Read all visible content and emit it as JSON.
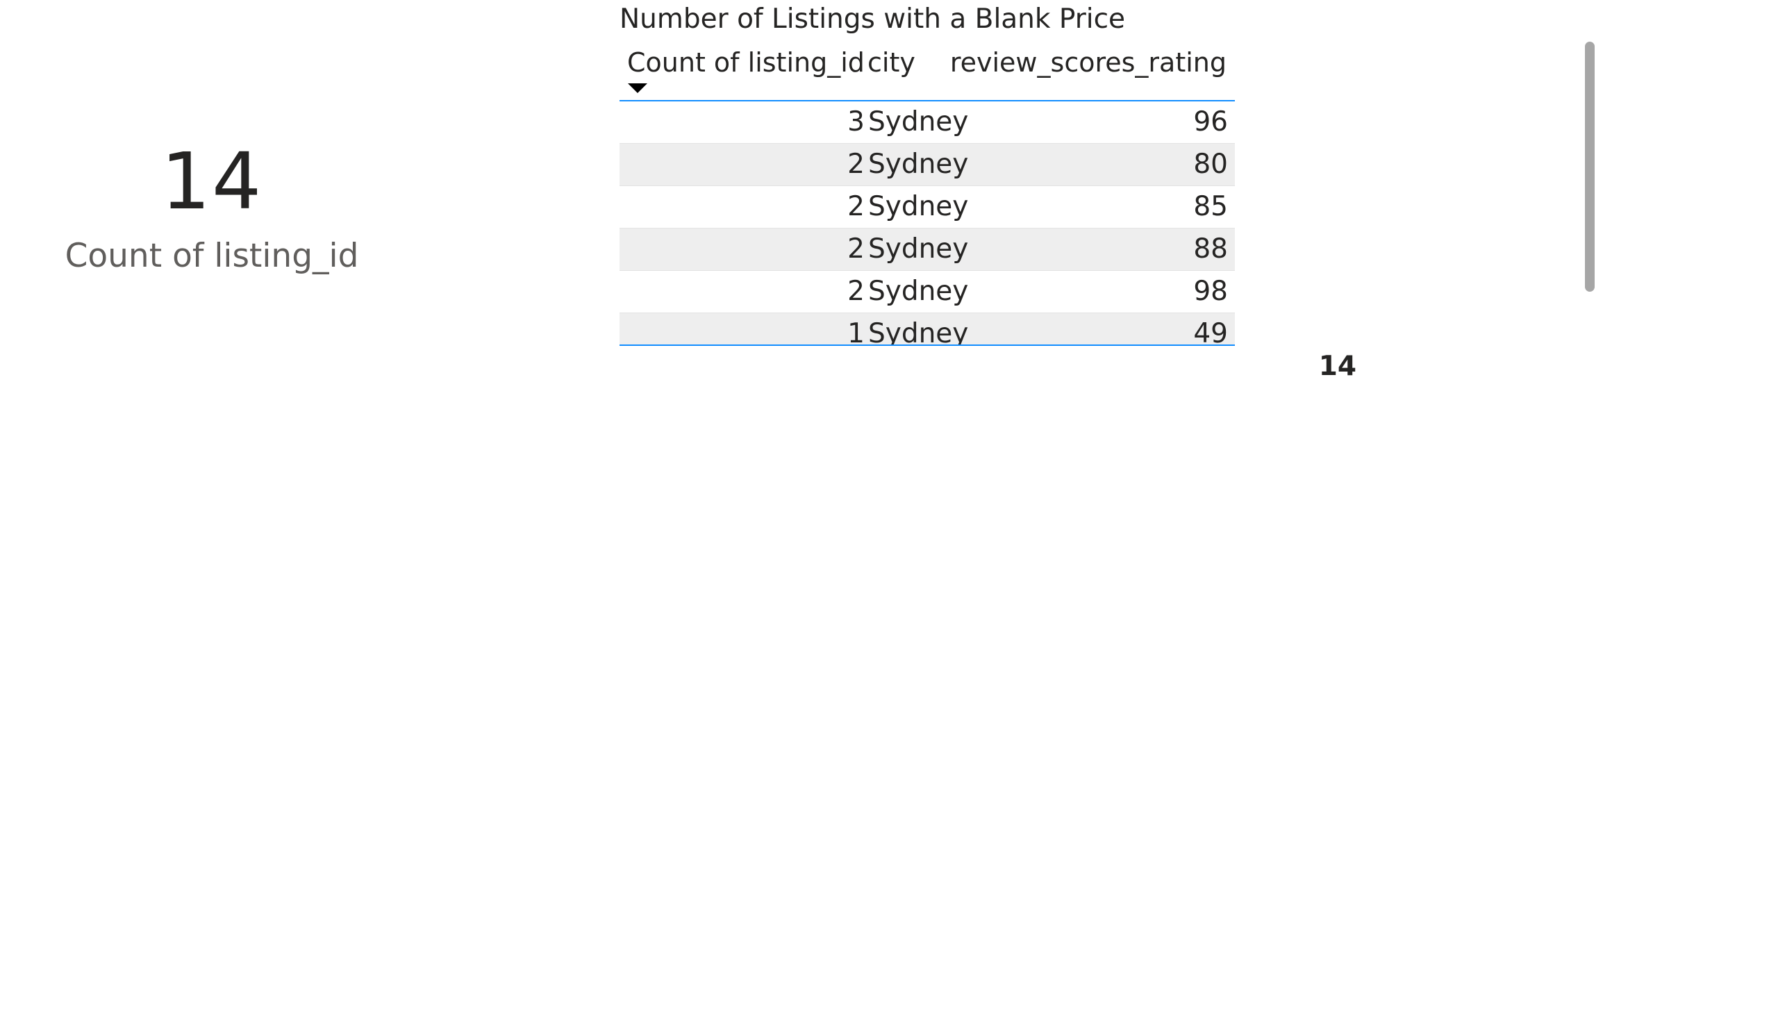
{
  "card": {
    "value": "14",
    "label": "Count of listing_id"
  },
  "table": {
    "title": "Number of Listings with a Blank Price",
    "columns": {
      "count": "Count of listing_id",
      "city": "city",
      "rating": "review_scores_rating"
    },
    "sort": {
      "column": "Count of listing_id",
      "direction": "descending",
      "icon": "sort-descending-icon"
    },
    "rows": [
      {
        "count": "3",
        "city": "Sydney",
        "rating": "96"
      },
      {
        "count": "2",
        "city": "Sydney",
        "rating": "80"
      },
      {
        "count": "2",
        "city": "Sydney",
        "rating": "85"
      },
      {
        "count": "2",
        "city": "Sydney",
        "rating": "88"
      },
      {
        "count": "2",
        "city": "Sydney",
        "rating": "98"
      },
      {
        "count": "1",
        "city": "Sydney",
        "rating": "49"
      }
    ],
    "total": "14"
  },
  "colors": {
    "header_rule": "#118dff",
    "alt_row": "#eeeeee",
    "scrollbar": "#a6a6a6"
  }
}
